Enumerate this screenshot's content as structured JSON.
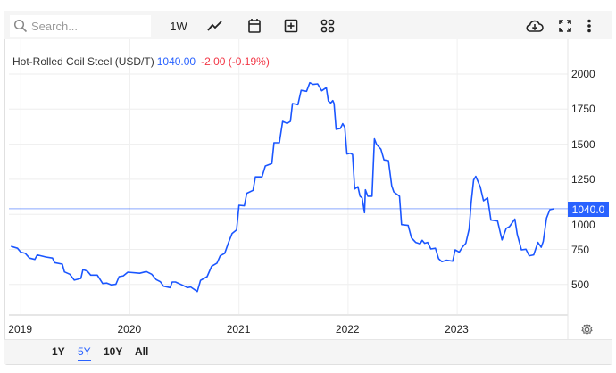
{
  "toolbar": {
    "search_placeholder": "Search...",
    "interval": "1W",
    "icons": [
      "search-icon",
      "line-chart-icon",
      "calendar-icon",
      "add-box-icon",
      "grid-icon",
      "cloud-download-icon",
      "fullscreen-icon",
      "more-vert-icon"
    ]
  },
  "header": {
    "title": "Hot-Rolled Coil Steel (USD/T)",
    "price": "1040.00",
    "change": "-2.00 (-0.19%)"
  },
  "range_buttons": [
    {
      "label": "1Y",
      "active": false
    },
    {
      "label": "5Y",
      "active": true
    },
    {
      "label": "10Y",
      "active": false
    },
    {
      "label": "All",
      "active": false
    }
  ],
  "colors": {
    "line": "#1a56ff",
    "accent": "#2962ff",
    "negative": "#f23645"
  },
  "chart_data": {
    "type": "line",
    "title": "Hot-Rolled Coil Steel (USD/T)",
    "xlabel": "",
    "ylabel": "",
    "x_ticks": [
      "2019",
      "2020",
      "2021",
      "2022",
      "2023"
    ],
    "y_ticks": [
      "500",
      "750",
      "1000",
      "1250",
      "1500",
      "1750",
      "2000"
    ],
    "ylim": [
      430,
      2050
    ],
    "xlim": [
      "2018-11-25",
      "2024-02-01"
    ],
    "grid": true,
    "y_axis_position": "right",
    "last_value_label": "1040.0",
    "reference_line": 1040,
    "series": [
      {
        "points": [
          [
            "2018-11-29",
            772
          ],
          [
            "2018-12-21",
            758
          ],
          [
            "2019-01-01",
            730
          ],
          [
            "2019-01-16",
            722
          ],
          [
            "2019-01-30",
            688
          ],
          [
            "2019-02-17",
            679
          ],
          [
            "2019-02-25",
            711
          ],
          [
            "2019-03-26",
            696
          ],
          [
            "2019-04-17",
            688
          ],
          [
            "2019-04-24",
            656
          ],
          [
            "2019-05-20",
            645
          ],
          [
            "2019-05-27",
            590
          ],
          [
            "2019-06-14",
            573
          ],
          [
            "2019-06-29",
            531
          ],
          [
            "2019-07-21",
            543
          ],
          [
            "2019-07-28",
            607
          ],
          [
            "2019-08-12",
            594
          ],
          [
            "2019-08-23",
            567
          ],
          [
            "2019-09-14",
            567
          ],
          [
            "2019-10-02",
            507
          ],
          [
            "2019-10-16",
            510
          ],
          [
            "2019-10-31",
            497
          ],
          [
            "2019-11-15",
            501
          ],
          [
            "2019-11-26",
            556
          ],
          [
            "2019-12-10",
            562
          ],
          [
            "2019-12-25",
            588
          ],
          [
            "2020-02-03",
            580
          ],
          [
            "2020-02-25",
            592
          ],
          [
            "2020-03-14",
            573
          ],
          [
            "2020-03-29",
            535
          ],
          [
            "2020-04-12",
            520
          ],
          [
            "2020-04-23",
            488
          ],
          [
            "2020-05-15",
            478
          ],
          [
            "2020-05-22",
            518
          ],
          [
            "2020-06-02",
            518
          ],
          [
            "2020-06-24",
            497
          ],
          [
            "2020-07-12",
            478
          ],
          [
            "2020-07-23",
            482
          ],
          [
            "2020-08-14",
            450
          ],
          [
            "2020-08-25",
            529
          ],
          [
            "2020-09-16",
            556
          ],
          [
            "2020-10-01",
            630
          ],
          [
            "2020-10-19",
            652
          ],
          [
            "2020-10-30",
            705
          ],
          [
            "2020-11-14",
            722
          ],
          [
            "2020-11-28",
            805
          ],
          [
            "2020-12-09",
            864
          ],
          [
            "2020-12-24",
            889
          ],
          [
            "2021-01-01",
            1065
          ],
          [
            "2021-01-19",
            1061
          ],
          [
            "2021-01-27",
            1150
          ],
          [
            "2021-02-17",
            1171
          ],
          [
            "2021-02-25",
            1267
          ],
          [
            "2021-03-19",
            1267
          ],
          [
            "2021-03-30",
            1345
          ],
          [
            "2021-04-21",
            1362
          ],
          [
            "2021-04-28",
            1510
          ],
          [
            "2021-05-16",
            1510
          ],
          [
            "2021-05-27",
            1663
          ],
          [
            "2021-06-11",
            1648
          ],
          [
            "2021-06-22",
            1663
          ],
          [
            "2021-06-29",
            1790
          ],
          [
            "2021-07-17",
            1782
          ],
          [
            "2021-07-28",
            1884
          ],
          [
            "2021-08-15",
            1877
          ],
          [
            "2021-08-26",
            1938
          ],
          [
            "2021-09-06",
            1926
          ],
          [
            "2021-09-21",
            1930
          ],
          [
            "2021-10-05",
            1881
          ],
          [
            "2021-10-20",
            1903
          ],
          [
            "2021-10-27",
            1807
          ],
          [
            "2021-11-04",
            1794
          ],
          [
            "2021-11-11",
            1811
          ],
          [
            "2021-11-15",
            1790
          ],
          [
            "2021-11-22",
            1606
          ],
          [
            "2021-12-06",
            1612
          ],
          [
            "2021-12-14",
            1646
          ],
          [
            "2021-12-21",
            1620
          ],
          [
            "2021-12-28",
            1430
          ],
          [
            "2022-01-08",
            1436
          ],
          [
            "2022-01-16",
            1426
          ],
          [
            "2022-01-23",
            1181
          ],
          [
            "2022-02-03",
            1197
          ],
          [
            "2022-02-10",
            1129
          ],
          [
            "2022-02-17",
            1118
          ],
          [
            "2022-02-25",
            1012
          ],
          [
            "2022-02-28",
            1175
          ],
          [
            "2022-03-08",
            1129
          ],
          [
            "2022-03-22",
            1129
          ],
          [
            "2022-03-30",
            1538
          ],
          [
            "2022-04-06",
            1500
          ],
          [
            "2022-04-21",
            1464
          ],
          [
            "2022-05-01",
            1388
          ],
          [
            "2022-05-16",
            1383
          ],
          [
            "2022-05-27",
            1203
          ],
          [
            "2022-06-03",
            1160
          ],
          [
            "2022-06-22",
            1129
          ],
          [
            "2022-06-29",
            927
          ],
          [
            "2022-07-21",
            921
          ],
          [
            "2022-08-01",
            832
          ],
          [
            "2022-08-15",
            800
          ],
          [
            "2022-08-30",
            790
          ],
          [
            "2022-09-06",
            815
          ],
          [
            "2022-09-14",
            794
          ],
          [
            "2022-09-24",
            800
          ],
          [
            "2022-10-05",
            753
          ],
          [
            "2022-10-20",
            758
          ],
          [
            "2022-10-31",
            684
          ],
          [
            "2022-11-11",
            662
          ],
          [
            "2022-11-26",
            673
          ],
          [
            "2022-12-17",
            666
          ],
          [
            "2022-12-25",
            747
          ],
          [
            "2023-01-08",
            730
          ],
          [
            "2023-01-19",
            768
          ],
          [
            "2023-01-30",
            794
          ],
          [
            "2023-02-10",
            896
          ],
          [
            "2023-02-17",
            1086
          ],
          [
            "2023-02-25",
            1245
          ],
          [
            "2023-03-04",
            1271
          ],
          [
            "2023-03-19",
            1197
          ],
          [
            "2023-03-30",
            1097
          ],
          [
            "2023-04-13",
            1118
          ],
          [
            "2023-04-24",
            959
          ],
          [
            "2023-05-16",
            953
          ],
          [
            "2023-05-31",
            818
          ],
          [
            "2023-06-14",
            900
          ],
          [
            "2023-06-25",
            913
          ],
          [
            "2023-07-13",
            966
          ],
          [
            "2023-07-21",
            857
          ],
          [
            "2023-08-04",
            747
          ],
          [
            "2023-08-19",
            751
          ],
          [
            "2023-08-30",
            705
          ],
          [
            "2023-09-14",
            711
          ],
          [
            "2023-09-28",
            800
          ],
          [
            "2023-10-09",
            765
          ],
          [
            "2023-10-16",
            807
          ],
          [
            "2023-10-27",
            974
          ],
          [
            "2023-11-07",
            1033
          ],
          [
            "2023-11-22",
            1040
          ]
        ]
      }
    ]
  }
}
